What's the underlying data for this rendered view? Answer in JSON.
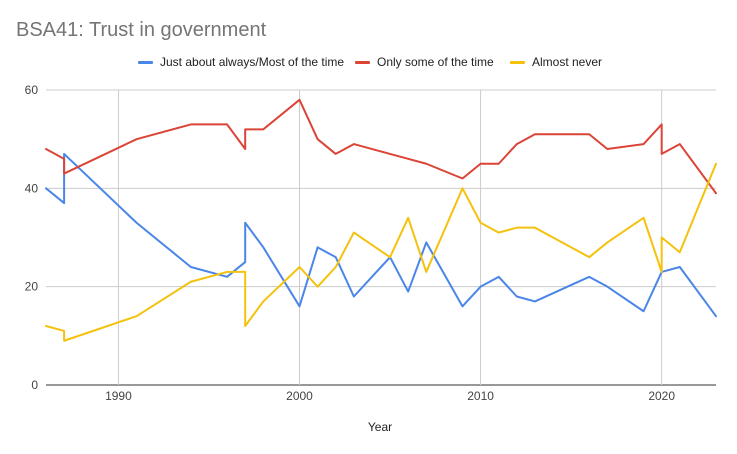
{
  "chart_data": {
    "type": "line",
    "title": "BSA41: Trust in government",
    "xlabel": "Year",
    "ylabel": "",
    "xlim": [
      1986,
      2023
    ],
    "ylim": [
      0,
      60
    ],
    "x_ticks": [
      1990,
      2000,
      2010,
      2020
    ],
    "y_ticks": [
      0,
      20,
      40,
      60
    ],
    "grid": "on",
    "legend": "top",
    "series": [
      {
        "name": "Just about always/Most of the time",
        "color": "#4a86e8",
        "points": [
          [
            1986,
            40
          ],
          [
            1987,
            37
          ],
          [
            1987,
            47
          ],
          [
            1991,
            33
          ],
          [
            1994,
            24
          ],
          [
            1996,
            22
          ],
          [
            1997,
            25
          ],
          [
            1997,
            33
          ],
          [
            1998,
            28
          ],
          [
            2000,
            16
          ],
          [
            2001,
            28
          ],
          [
            2002,
            26
          ],
          [
            2003,
            18
          ],
          [
            2005,
            26
          ],
          [
            2006,
            19
          ],
          [
            2007,
            29
          ],
          [
            2009,
            16
          ],
          [
            2010,
            20
          ],
          [
            2011,
            22
          ],
          [
            2012,
            18
          ],
          [
            2013,
            17
          ],
          [
            2016,
            22
          ],
          [
            2017,
            20
          ],
          [
            2019,
            15
          ],
          [
            2020,
            23
          ],
          [
            2021,
            24
          ],
          [
            2023,
            14
          ]
        ]
      },
      {
        "name": "Only some of the time",
        "color": "#db4437",
        "points": [
          [
            1986,
            48
          ],
          [
            1987,
            46
          ],
          [
            1987,
            43
          ],
          [
            1991,
            50
          ],
          [
            1994,
            53
          ],
          [
            1996,
            53
          ],
          [
            1997,
            48
          ],
          [
            1997,
            52
          ],
          [
            1998,
            52
          ],
          [
            2000,
            58
          ],
          [
            2001,
            50
          ],
          [
            2002,
            47
          ],
          [
            2003,
            49
          ],
          [
            2005,
            47
          ],
          [
            2006,
            46
          ],
          [
            2007,
            45
          ],
          [
            2009,
            42
          ],
          [
            2010,
            45
          ],
          [
            2011,
            45
          ],
          [
            2012,
            49
          ],
          [
            2013,
            51
          ],
          [
            2016,
            51
          ],
          [
            2017,
            48
          ],
          [
            2019,
            49
          ],
          [
            2020,
            53
          ],
          [
            2020,
            47
          ],
          [
            2021,
            49
          ],
          [
            2023,
            39
          ]
        ]
      },
      {
        "name": "Almost never",
        "color": "#f4c20d",
        "points": [
          [
            1986,
            12
          ],
          [
            1987,
            11
          ],
          [
            1987,
            9
          ],
          [
            1991,
            14
          ],
          [
            1994,
            21
          ],
          [
            1996,
            23
          ],
          [
            1997,
            23
          ],
          [
            1997,
            12
          ],
          [
            1998,
            17
          ],
          [
            2000,
            24
          ],
          [
            2001,
            20
          ],
          [
            2002,
            24
          ],
          [
            2003,
            31
          ],
          [
            2005,
            26
          ],
          [
            2006,
            34
          ],
          [
            2007,
            23
          ],
          [
            2009,
            40
          ],
          [
            2010,
            33
          ],
          [
            2011,
            31
          ],
          [
            2012,
            32
          ],
          [
            2013,
            32
          ],
          [
            2016,
            26
          ],
          [
            2017,
            29
          ],
          [
            2019,
            34
          ],
          [
            2020,
            23
          ],
          [
            2020,
            30
          ],
          [
            2021,
            27
          ],
          [
            2023,
            45
          ]
        ]
      }
    ]
  }
}
